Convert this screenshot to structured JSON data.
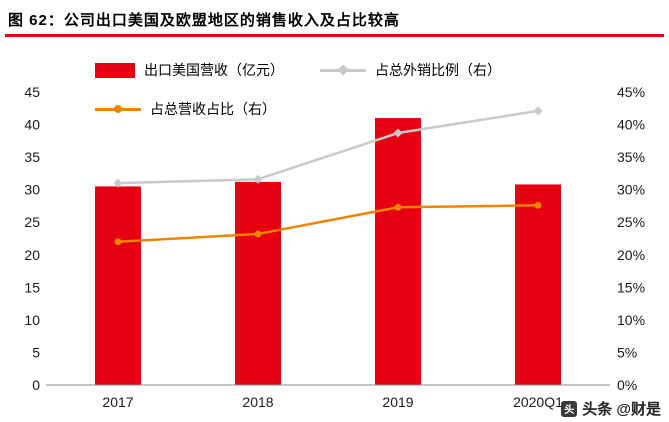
{
  "header": {
    "title": "图 62：公司出口美国及欧盟地区的销售收入及占比较高"
  },
  "colors": {
    "bar_red": "#e60012",
    "line_gray": "#c9c9c9",
    "line_orange": "#f08300",
    "title_rule_red": "#e60012",
    "axis_text": "#1a1a1a",
    "axis_line": "#8c8c8c"
  },
  "watermark": {
    "logo_char": "头",
    "text": "头条 @财是"
  },
  "chart_data": {
    "type": "bar",
    "subtype": "bar+line combo, dual axis",
    "categories": [
      "2017",
      "2018",
      "2019",
      "2020Q1"
    ],
    "series": [
      {
        "name": "出口美国营收（亿元）",
        "type": "bar",
        "axis": "left",
        "color": "#e60012",
        "marker": "none",
        "values": [
          30.5,
          31.2,
          41.0,
          30.8
        ]
      },
      {
        "name": "占总外销比例（右）",
        "type": "line",
        "axis": "right",
        "color": "#c9c9c9",
        "marker": "diamond",
        "values": [
          31.0,
          31.6,
          38.7,
          42.1
        ]
      },
      {
        "name": "占总营收占比（右）",
        "type": "line",
        "axis": "right",
        "color": "#f08300",
        "marker": "circle",
        "values": [
          22.0,
          23.2,
          27.3,
          27.6
        ]
      }
    ],
    "left_axis": {
      "min": 0,
      "max": 45,
      "step": 5,
      "ticks": [
        "45",
        "40",
        "35",
        "30",
        "25",
        "20",
        "15",
        "10",
        "5",
        "0"
      ]
    },
    "right_axis": {
      "min": 0,
      "max": 45,
      "step": 5,
      "ticks": [
        "45%",
        "40%",
        "35%",
        "30%",
        "25%",
        "20%",
        "15%",
        "10%",
        "5%",
        "0%"
      ]
    },
    "grid": false,
    "legend_position": "top-left, two rows"
  }
}
